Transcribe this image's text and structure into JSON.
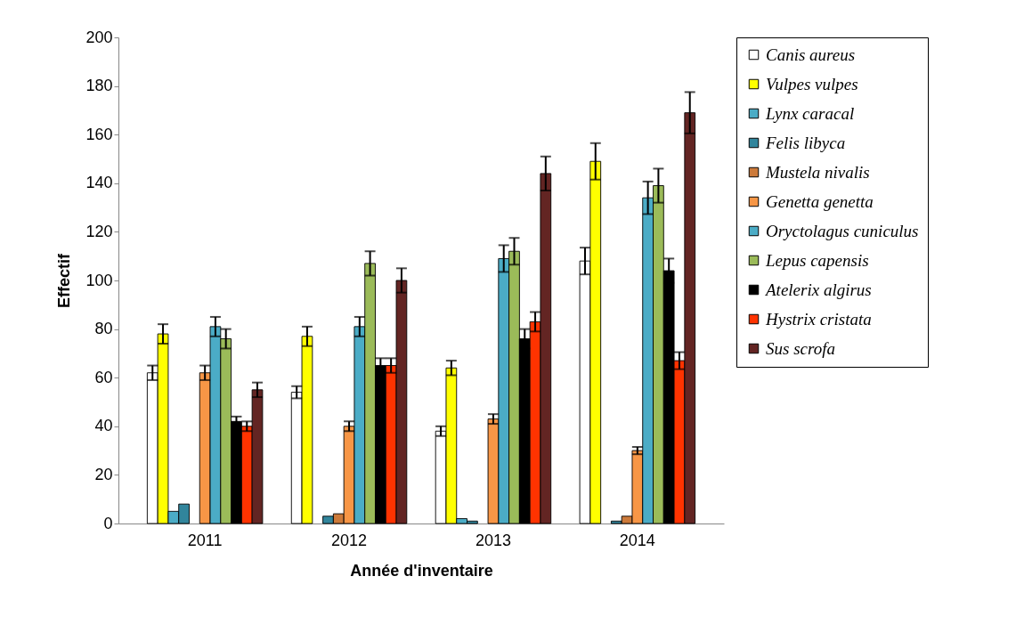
{
  "chart_data": {
    "type": "bar",
    "xlabel": "Année d'inventaire",
    "ylabel": "Effectif",
    "categories": [
      "2011",
      "2012",
      "2013",
      "2014"
    ],
    "series": [
      {
        "name": "Canis aureus",
        "color": "#ffffff",
        "values": [
          62,
          54,
          38,
          108
        ],
        "errors": [
          3,
          2.5,
          2,
          5.5
        ]
      },
      {
        "name": "Vulpes vulpes",
        "color": "#ffff00",
        "values": [
          78,
          77,
          64,
          149
        ],
        "errors": [
          4,
          4,
          3,
          7.5
        ]
      },
      {
        "name": "Lynx caracal",
        "color": "#4bacc6",
        "values": [
          5,
          0,
          2,
          0
        ]
      },
      {
        "name": "Felis libyca",
        "color": "#31859c",
        "values": [
          8,
          3,
          1,
          1
        ]
      },
      {
        "name": "Mustela nivalis",
        "color": "#cc7a3a",
        "values": [
          0,
          4,
          0,
          3
        ]
      },
      {
        "name": "Genetta genetta",
        "color": "#f79646",
        "values": [
          62,
          40,
          43,
          30
        ],
        "errors": [
          3,
          2,
          2,
          1.5
        ]
      },
      {
        "name": "Oryctolagus cuniculus",
        "color": "#4bacc6",
        "values": [
          81,
          81,
          109,
          134
        ],
        "errors": [
          4,
          4,
          5.5,
          6.7
        ]
      },
      {
        "name": "Lepus capensis",
        "color": "#9bbb59",
        "values": [
          76,
          107,
          112,
          139
        ],
        "errors": [
          4,
          5,
          5.5,
          7
        ]
      },
      {
        "name": "Atelerix algirus",
        "color": "#000000",
        "values": [
          42,
          65,
          76,
          104
        ],
        "errors": [
          2,
          3,
          4,
          5
        ]
      },
      {
        "name": "Hystrix cristata",
        "color": "#ff3300",
        "values": [
          40,
          65,
          83,
          67
        ],
        "errors": [
          2,
          3,
          4,
          3.5
        ]
      },
      {
        "name": "Sus scrofa",
        "color": "#632523",
        "values": [
          55,
          100,
          144,
          169
        ],
        "errors": [
          3,
          5,
          7,
          8.5
        ]
      }
    ],
    "ylim": [
      0,
      200
    ],
    "yticks": [
      0,
      20,
      40,
      60,
      80,
      100,
      120,
      140,
      160,
      180,
      200
    ],
    "grid": false,
    "legend": "right"
  }
}
